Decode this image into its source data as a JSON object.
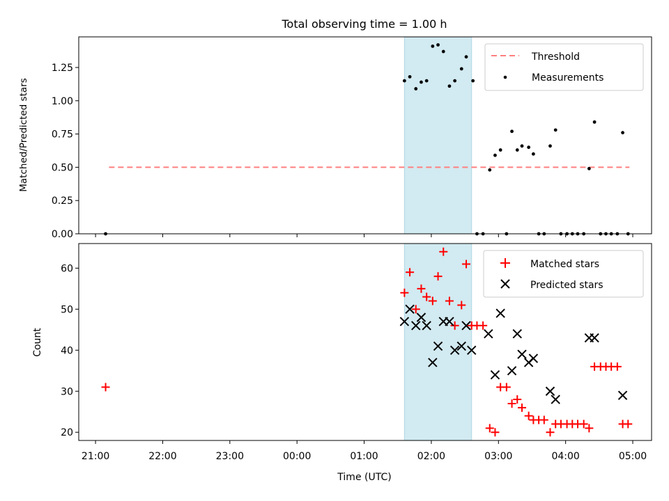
{
  "chart_data": [
    {
      "type": "scatter",
      "title": "Total observing time = 1.00 h",
      "xlabel": "",
      "ylabel": "Matched/Predicted stars",
      "ylim": [
        0,
        1.48
      ],
      "yticks": [
        "0.00",
        "0.25",
        "0.50",
        "0.75",
        "1.00",
        "1.25"
      ],
      "xlim_hours": [
        20.75,
        29.28
      ],
      "highlight_band_hours": [
        25.6,
        26.6
      ],
      "highlight_color": "#add8e6",
      "legend_position": "upper right",
      "threshold": {
        "name": "Threshold",
        "value": 0.5,
        "x_range_hours": [
          21.2,
          28.95
        ],
        "color": "#ff7f7f",
        "style": "dashed"
      },
      "series": [
        {
          "name": "Measurements",
          "color": "#000000",
          "marker": "dot",
          "x_hours": [
            21.15,
            25.6,
            25.68,
            25.77,
            25.85,
            25.93,
            26.02,
            26.1,
            26.18,
            26.27,
            26.35,
            26.45,
            26.52,
            26.62,
            26.68,
            26.77,
            26.87,
            26.95,
            27.03,
            27.12,
            27.2,
            27.28,
            27.35,
            27.45,
            27.52,
            27.6,
            27.68,
            27.77,
            27.85,
            27.93,
            28.02,
            28.1,
            28.18,
            28.27,
            28.35,
            28.43,
            28.52,
            28.6,
            28.68,
            28.77,
            28.85,
            28.93
          ],
          "y": [
            0.0,
            1.15,
            1.18,
            1.09,
            1.14,
            1.15,
            1.41,
            1.42,
            1.37,
            1.11,
            1.15,
            1.24,
            1.33,
            1.15,
            0.0,
            0.0,
            0.48,
            0.59,
            0.63,
            0.0,
            0.77,
            0.63,
            0.66,
            0.65,
            0.6,
            0.0,
            0.0,
            0.66,
            0.78,
            0.0,
            0.0,
            0.0,
            0.0,
            0.0,
            0.49,
            0.84,
            0.0,
            0.0,
            0.0,
            0.0,
            0.76,
            0.0
          ]
        }
      ]
    },
    {
      "type": "scatter",
      "title": "",
      "xlabel": "Time (UTC)",
      "ylabel": "Count",
      "ylim": [
        18,
        66
      ],
      "yticks": [
        "20",
        "30",
        "40",
        "50",
        "60"
      ],
      "xticks": [
        {
          "hour": 21,
          "label": "21:00"
        },
        {
          "hour": 22,
          "label": "22:00"
        },
        {
          "hour": 23,
          "label": "23:00"
        },
        {
          "hour": 24,
          "label": "00:00"
        },
        {
          "hour": 25,
          "label": "01:00"
        },
        {
          "hour": 26,
          "label": "02:00"
        },
        {
          "hour": 27,
          "label": "03:00"
        },
        {
          "hour": 28,
          "label": "04:00"
        },
        {
          "hour": 29,
          "label": "05:00"
        }
      ],
      "xlim_hours": [
        20.75,
        29.28
      ],
      "highlight_band_hours": [
        25.6,
        26.6
      ],
      "highlight_color": "#add8e6",
      "legend_position": "upper right",
      "series": [
        {
          "name": "Matched stars",
          "color": "#ff0000",
          "marker": "plus",
          "x_hours": [
            21.15,
            25.6,
            25.68,
            25.77,
            25.85,
            25.93,
            26.02,
            26.1,
            26.18,
            26.27,
            26.35,
            26.45,
            26.52,
            26.6,
            26.68,
            26.77,
            26.87,
            26.95,
            27.03,
            27.12,
            27.2,
            27.28,
            27.35,
            27.45,
            27.52,
            27.6,
            27.68,
            27.77,
            27.85,
            27.93,
            28.02,
            28.1,
            28.18,
            28.27,
            28.35,
            28.43,
            28.52,
            28.6,
            28.68,
            28.77,
            28.85,
            28.93
          ],
          "y": [
            31,
            54,
            59,
            50,
            55,
            53,
            52,
            58,
            64,
            52,
            46,
            51,
            61,
            46,
            46,
            46,
            21,
            20,
            31,
            31,
            27,
            28,
            26,
            24,
            23,
            23,
            23,
            20,
            22,
            22,
            22,
            22,
            22,
            22,
            21,
            36,
            36,
            36,
            36,
            36,
            22,
            22
          ]
        },
        {
          "name": "Predicted stars",
          "color": "#000000",
          "marker": "x",
          "x_hours": [
            25.6,
            25.68,
            25.77,
            25.85,
            25.93,
            26.02,
            26.1,
            26.18,
            26.27,
            26.35,
            26.45,
            26.52,
            26.6,
            26.85,
            26.95,
            27.03,
            27.2,
            27.28,
            27.35,
            27.45,
            27.52,
            27.77,
            27.85,
            28.35,
            28.43,
            28.85
          ],
          "y": [
            47,
            50,
            46,
            48,
            46,
            37,
            41,
            47,
            47,
            40,
            41,
            46,
            40,
            44,
            34,
            49,
            35,
            44,
            39,
            37,
            38,
            30,
            28,
            43,
            43,
            29
          ]
        }
      ]
    }
  ]
}
